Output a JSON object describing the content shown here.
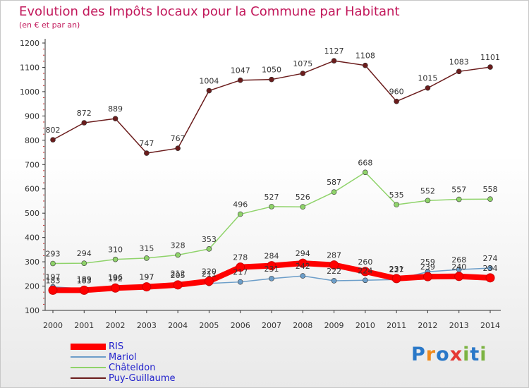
{
  "title": "Evolution des Impôts locaux pour la Commune par Habitant",
  "subtitle": "(en € et par an)",
  "logo": {
    "text": "Proxiti",
    "letters": [
      "P",
      "r",
      "o",
      "x",
      "i",
      "t",
      "i"
    ],
    "colors": [
      "#2a78c8",
      "#f08a1c",
      "#2a78c8",
      "#e53935",
      "#7cb342",
      "#2a78c8",
      "#7cb342"
    ]
  },
  "chart_data": {
    "type": "line",
    "x": [
      "2000",
      "2001",
      "2002",
      "2003",
      "2004",
      "2005",
      "2006",
      "2007",
      "2008",
      "2009",
      "2010",
      "2011",
      "2012",
      "2013",
      "2014"
    ],
    "ylim": [
      100,
      1200
    ],
    "yticks": [
      100,
      200,
      300,
      400,
      500,
      600,
      700,
      800,
      900,
      1000,
      1100,
      1200
    ],
    "grid": false,
    "legend_position": "bottom-left",
    "series": [
      {
        "name": "Puy-Guillaume",
        "color": "#6b1c1c",
        "width": 1.5,
        "values": [
          802,
          872,
          889,
          747,
          767,
          1004,
          1047,
          1050,
          1075,
          1127,
          1108,
          960,
          1015,
          1083,
          1101
        ],
        "labels": [
          "802",
          "872",
          "889",
          "747",
          "767",
          "1004",
          "1047",
          "1050",
          "1075",
          "1127",
          "1108",
          "960",
          "1015",
          "1083",
          "1101"
        ]
      },
      {
        "name": "Châteldon",
        "color": "#8fd36a",
        "width": 1.5,
        "values": [
          293,
          294,
          310,
          315,
          328,
          353,
          496,
          527,
          526,
          587,
          668,
          535,
          552,
          557,
          558
        ],
        "labels": [
          "293",
          "294",
          "310",
          "315",
          "328",
          "353",
          "496",
          "527",
          "526",
          "587",
          "668",
          "535",
          "552",
          "557",
          "558"
        ]
      },
      {
        "name": "Mariol",
        "color": "#6c9ec9",
        "width": 1.5,
        "values": [
          197,
          189,
          196,
          197,
          212,
          211,
          217,
          231,
          242,
          222,
          224,
          227,
          259,
          268,
          274
        ],
        "labels": [
          "197",
          "189",
          "196",
          "197",
          "212",
          "211",
          "217",
          "231",
          "242",
          "222",
          "224",
          "227",
          "259",
          "268",
          "274"
        ]
      },
      {
        "name": "RIS",
        "color": "#ff0000",
        "width": 8,
        "values": [
          183,
          183,
          192,
          197,
          205,
          220,
          278,
          284,
          294,
          287,
          260,
          231,
          239,
          240,
          234
        ],
        "labels": [
          "183",
          "183",
          "192",
          "197",
          "205",
          "220",
          "278",
          "284",
          "294",
          "287",
          "260",
          "231",
          "239",
          "240",
          "234"
        ]
      }
    ]
  }
}
